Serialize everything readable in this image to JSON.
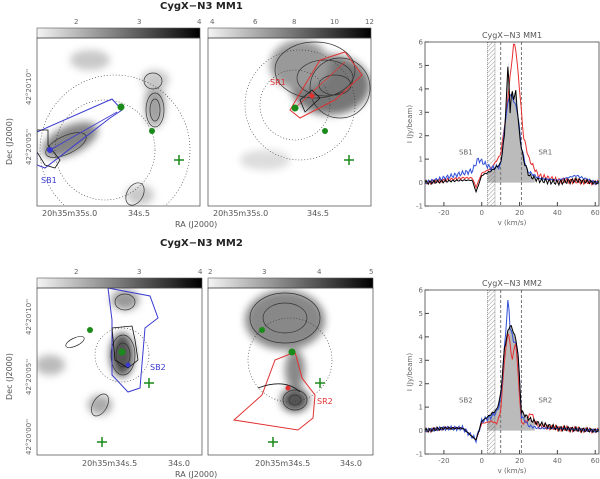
{
  "figure": {
    "rows": [
      {
        "title": "CygX−N3 MM1",
        "colorbar_left_ticks": [
          "2",
          "3",
          "4"
        ],
        "colorbar_right_ticks": [
          "4",
          "6",
          "8",
          "10",
          "12"
        ],
        "ra_ticks_left": [
          "20h35m35s.0",
          "34s.5"
        ],
        "ra_ticks_right": [
          "20h35m35s.0",
          "34s.5"
        ],
        "ra_label": "RA (J2000)",
        "dec_label": "Dec (J2000)",
        "dec_ticks": [
          "42°20'10''",
          "42°20'05''"
        ],
        "left_region_label": "SB1",
        "right_region_label": "SR1"
      },
      {
        "title": "CygX−N3 MM2",
        "colorbar_left_ticks": [
          "2",
          "3",
          "4"
        ],
        "colorbar_right_ticks": [
          "2",
          "3",
          "4",
          "5"
        ],
        "ra_ticks_left": [
          "20h35m34s.5",
          "34s.0"
        ],
        "ra_ticks_right": [
          "20h35m34s.5",
          "34s.0"
        ],
        "ra_label": "RA (J2000)",
        "dec_label": "Dec (J2000)",
        "dec_ticks": [
          "42°20'10''",
          "42°20'05''",
          "42°20'00''"
        ],
        "left_region_label": "SB2",
        "right_region_label": "SR2"
      }
    ],
    "colors": {
      "blue_region": "#3a3ad0",
      "red_region": "#e03030",
      "green_marker": "#1a8a1a"
    }
  },
  "chart_data": [
    {
      "type": "line",
      "title": "CygX−N3 MM1",
      "xlabel": "v (km/s)",
      "ylabel": "I (Jy/beam)",
      "xlim": [
        -30,
        62
      ],
      "ylim": [
        -1,
        6
      ],
      "xticks": [
        "-20",
        "0",
        "20",
        "40",
        "60"
      ],
      "yticks": [
        "-1",
        "0",
        "1",
        "2",
        "3",
        "4",
        "5",
        "6"
      ],
      "hatched_band": [
        3,
        7
      ],
      "dashed_lines": [
        10,
        21
      ],
      "shaded_under": "black",
      "shaded_range": [
        3,
        28
      ],
      "series": [
        {
          "color": "#000000",
          "x": [
            -30,
            -20,
            -10,
            -5,
            -3,
            0,
            5,
            10,
            12,
            14,
            15,
            16,
            17,
            18,
            20,
            22,
            25,
            30,
            40,
            50,
            60
          ],
          "y": [
            0,
            0.05,
            0.1,
            0.1,
            -0.4,
            0.3,
            0.5,
            0.8,
            2,
            5.2,
            3,
            4,
            3.5,
            3.9,
            2,
            1,
            0.3,
            0.1,
            0,
            0.1,
            0
          ]
        },
        {
          "color": "#2f4fd8",
          "x": [
            -30,
            -20,
            -10,
            -5,
            -2,
            0,
            5,
            10,
            13,
            15,
            17,
            19,
            21,
            24,
            30,
            40,
            50,
            60
          ],
          "y": [
            0,
            0.2,
            0.4,
            0.5,
            1,
            0.9,
            0.6,
            0.7,
            3,
            3.8,
            3.5,
            3,
            1.5,
            0.5,
            0.2,
            0.1,
            0.3,
            0
          ]
        },
        {
          "color": "#e83030",
          "x": [
            -30,
            -20,
            -10,
            -5,
            -3,
            0,
            5,
            10,
            13,
            15,
            17,
            18,
            20,
            22,
            25,
            30,
            40,
            60
          ],
          "y": [
            0,
            0.1,
            0.2,
            0.2,
            -0.2,
            0.4,
            0.6,
            1.2,
            3,
            4.5,
            6,
            5.7,
            4,
            2,
            1,
            0.3,
            0.1,
            0
          ]
        }
      ],
      "annotations": [
        {
          "text": "SB1",
          "color": "#2f4fd8"
        },
        {
          "text": "SR1",
          "color": "#e83030"
        }
      ]
    },
    {
      "type": "line",
      "title": "CygX−N3 MM2",
      "xlabel": "v (km/s)",
      "ylabel": "I (Jy/beam)",
      "xlim": [
        -30,
        62
      ],
      "ylim": [
        -1,
        6
      ],
      "xticks": [
        "-20",
        "0",
        "20",
        "40",
        "60"
      ],
      "yticks": [
        "-1",
        "0",
        "1",
        "2",
        "3",
        "4",
        "5",
        "6"
      ],
      "hatched_band": [
        3,
        7
      ],
      "dashed_lines": [
        10,
        21
      ],
      "shaded_under": "black",
      "shaded_range": [
        3,
        28
      ],
      "series": [
        {
          "color": "#000000",
          "x": [
            -30,
            -20,
            -10,
            -3,
            0,
            5,
            8,
            10,
            12,
            14,
            15,
            17,
            19,
            21,
            25,
            30,
            40,
            60
          ],
          "y": [
            0,
            0.1,
            0.1,
            -0.4,
            0.4,
            0.7,
            0.9,
            1.5,
            3.5,
            4.3,
            4.5,
            4.2,
            3.5,
            0.8,
            0.5,
            0.3,
            0.1,
            0
          ]
        },
        {
          "color": "#2f4fd8",
          "x": [
            -30,
            -20,
            -10,
            -3,
            0,
            5,
            8,
            10,
            12,
            14,
            15,
            17,
            19,
            21,
            25,
            30,
            40,
            60
          ],
          "y": [
            0,
            0.1,
            0.1,
            -0.4,
            0.4,
            0.6,
            0.8,
            1.3,
            3.5,
            5.7,
            4.4,
            3.8,
            3.6,
            0.6,
            0.2,
            0.1,
            0.1,
            0
          ]
        },
        {
          "color": "#e83030",
          "x": [
            -30,
            -20,
            -10,
            -3,
            0,
            5,
            8,
            10,
            12,
            14,
            16,
            18,
            21,
            24,
            26,
            28,
            30,
            40,
            60
          ],
          "y": [
            0,
            0.1,
            0.1,
            -0.4,
            0.3,
            0.4,
            0.3,
            0.8,
            3,
            4.3,
            3,
            3.8,
            0.3,
            0.4,
            0.8,
            0.4,
            0.2,
            0.1,
            0
          ]
        }
      ],
      "annotations": [
        {
          "text": "SB2",
          "color": "#2f4fd8"
        },
        {
          "text": "SR2",
          "color": "#e83030"
        }
      ]
    }
  ]
}
